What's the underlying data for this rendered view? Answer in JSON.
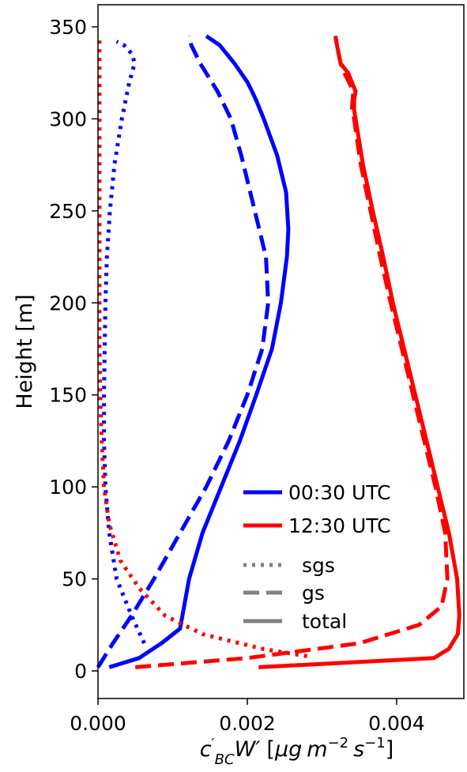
{
  "chart_data": {
    "type": "line",
    "xlabel": "c′BC W′ [µg m⁻² s⁻¹]",
    "xlabel_parts": {
      "c": "c",
      "prime": "′",
      "sub": "BC",
      "w": "W′",
      "units_open": "[",
      "mu": "µg",
      "m": "m",
      "m_exp": "−2",
      "s": "s",
      "s_exp": "−1",
      "units_close": "]"
    },
    "ylabel": "Height [m]",
    "xlim": [
      0,
      0.0049
    ],
    "ylim": [
      -15,
      362
    ],
    "xticks": [
      0,
      0.002,
      0.004
    ],
    "xtick_labels": [
      "0.000",
      "0.002",
      "0.004"
    ],
    "yticks": [
      0,
      50,
      100,
      150,
      200,
      250,
      300,
      350
    ],
    "ytick_labels": [
      "0",
      "50",
      "100",
      "150",
      "200",
      "250",
      "300",
      "350"
    ],
    "grid": false,
    "legend_position": "lower-right",
    "legend": {
      "colors": [
        {
          "label": "00:30 UTC",
          "color": "#0000ff"
        },
        {
          "label": "12:30 UTC",
          "color": "#ff0000"
        }
      ],
      "styles": [
        {
          "label": "sgs",
          "dash": "dotted",
          "color": "#808080"
        },
        {
          "label": "gs",
          "dash": "dashed",
          "color": "#808080"
        },
        {
          "label": "total",
          "dash": "solid",
          "color": "#808080"
        }
      ]
    },
    "series": [
      {
        "time": "00:30 UTC",
        "component": "total",
        "color": "#0000ff",
        "dash": "solid",
        "x": [
          0.00015,
          0.00055,
          0.00085,
          0.0011,
          0.00122,
          0.0014,
          0.00165,
          0.0019,
          0.00212,
          0.00233,
          0.00245,
          0.00253,
          0.00255,
          0.00252,
          0.0024,
          0.00222,
          0.00212,
          0.00205,
          0.002,
          0.00183,
          0.00163,
          0.00145
        ],
        "y": [
          2,
          7,
          15,
          23,
          50,
          75,
          100,
          125,
          150,
          175,
          200,
          225,
          240,
          260,
          280,
          300,
          310,
          316,
          320,
          330,
          340,
          345
        ]
      },
      {
        "time": "00:30 UTC",
        "component": "gs",
        "color": "#0000ff",
        "dash": "dashed",
        "x": [
          0.0,
          0.0002,
          0.00045,
          0.00075,
          0.0011,
          0.00145,
          0.00175,
          0.002,
          0.0022,
          0.00228,
          0.00225,
          0.0021,
          0.00192,
          0.00178,
          0.0016,
          0.00137,
          0.00125,
          0.00122
        ],
        "y": [
          2,
          15,
          30,
          50,
          75,
          100,
          125,
          150,
          175,
          200,
          225,
          250,
          280,
          300,
          315,
          330,
          340,
          345
        ]
      },
      {
        "time": "00:30 UTC",
        "component": "sgs",
        "color": "#0000ff",
        "dash": "dotted",
        "x": [
          0.00062,
          0.00045,
          0.00025,
          0.00015,
          0.0001,
          8e-05,
          8e-05,
          9e-05,
          0.0001,
          0.00012,
          0.00016,
          0.00022,
          0.00032,
          0.00042,
          0.00049,
          0.00046,
          0.00035,
          0.00025
        ],
        "y": [
          15,
          30,
          50,
          75,
          100,
          125,
          150,
          175,
          200,
          225,
          250,
          275,
          300,
          320,
          330,
          335,
          340,
          342
        ]
      },
      {
        "time": "12:30 UTC",
        "component": "total",
        "color": "#ff0000",
        "dash": "solid",
        "x": [
          0.00215,
          0.0045,
          0.0047,
          0.00482,
          0.00484,
          0.00481,
          0.0047,
          0.00455,
          0.0044,
          0.00425,
          0.0041,
          0.00395,
          0.00382,
          0.00368,
          0.00355,
          0.00345,
          0.00343,
          0.00343,
          0.00345,
          0.00335,
          0.00325,
          0.0032,
          0.00318
        ],
        "y": [
          2,
          7,
          12,
          20,
          30,
          50,
          75,
          100,
          125,
          150,
          175,
          200,
          225,
          250,
          275,
          300,
          305,
          310,
          315,
          325,
          330,
          340,
          345
        ]
      },
      {
        "time": "12:30 UTC",
        "component": "gs",
        "color": "#ff0000",
        "dash": "dashed",
        "x": [
          0.0005,
          0.002,
          0.0035,
          0.0043,
          0.0046,
          0.00468,
          0.00465,
          0.00452,
          0.00437,
          0.00422,
          0.00407,
          0.00392,
          0.00378,
          0.00365,
          0.00352,
          0.00343,
          0.0034,
          0.00342,
          0.0033,
          0.00325,
          0.0032,
          0.00318
        ],
        "y": [
          2,
          7,
          15,
          25,
          35,
          50,
          75,
          100,
          125,
          150,
          175,
          200,
          225,
          250,
          275,
          300,
          305,
          315,
          325,
          330,
          340,
          345
        ]
      },
      {
        "time": "12:30 UTC",
        "component": "sgs",
        "color": "#ff0000",
        "dash": "dotted",
        "x": [
          0.0028,
          0.0022,
          0.0014,
          0.0009,
          0.00055,
          0.0003,
          0.00015,
          8e-05,
          5e-05,
          3e-05,
          2e-05,
          2e-05,
          2e-05,
          2e-05,
          2e-05,
          2e-05,
          2e-05,
          2e-05,
          2e-05
        ],
        "y": [
          8,
          12,
          20,
          30,
          45,
          60,
          80,
          100,
          125,
          150,
          175,
          200,
          225,
          250,
          275,
          300,
          320,
          335,
          343
        ]
      }
    ]
  }
}
